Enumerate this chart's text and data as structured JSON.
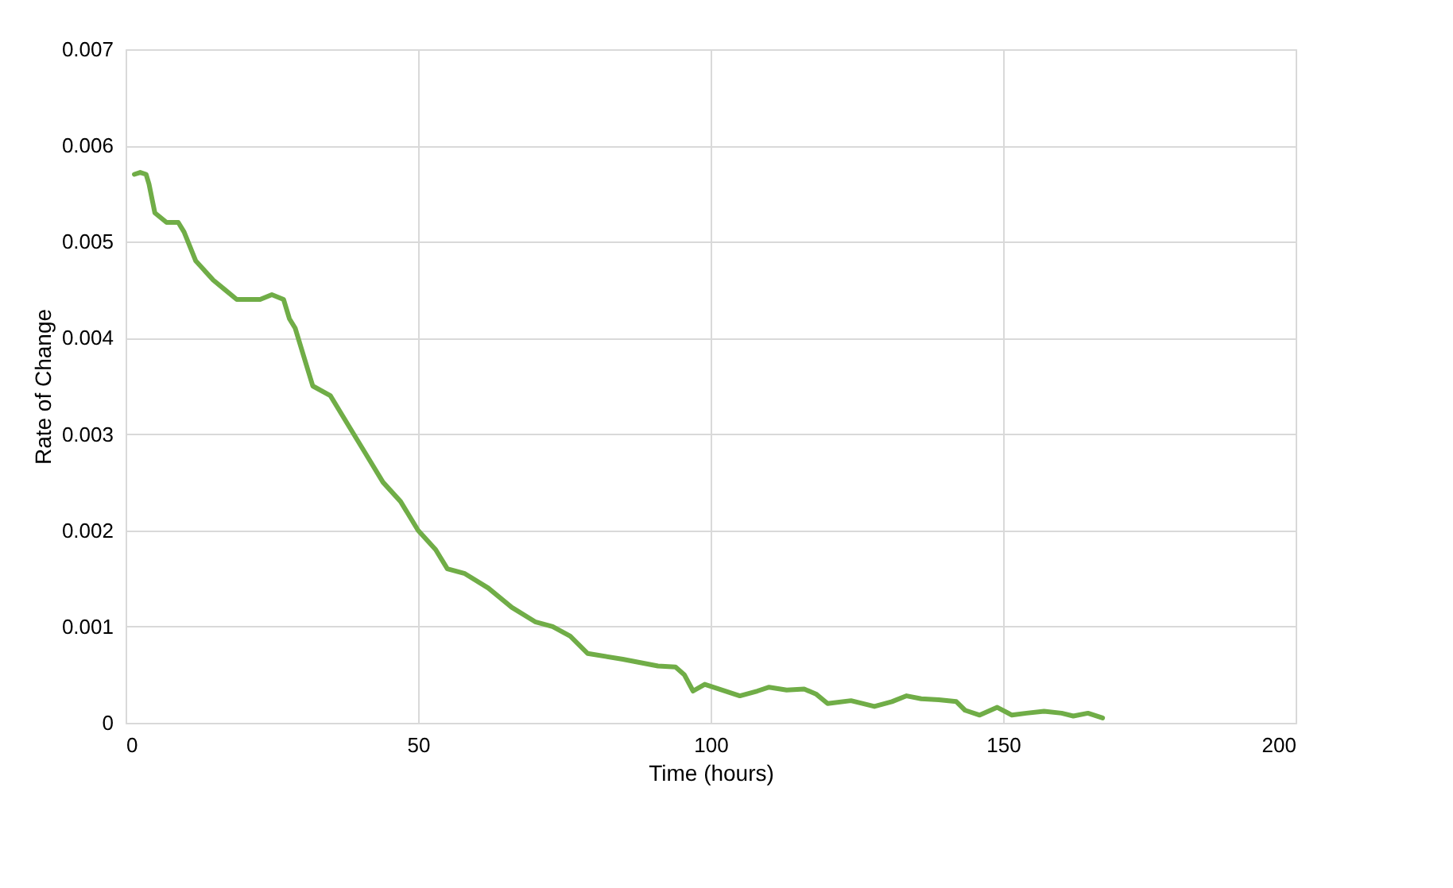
{
  "chart_data": {
    "type": "line",
    "xlabel": "Time (hours)",
    "ylabel": "Rate of Change",
    "xlim": [
      0,
      200
    ],
    "xticks": [
      0,
      50,
      100,
      150,
      200
    ],
    "ylim": [
      0,
      0.007
    ],
    "yticks": [
      0,
      0.001,
      0.002,
      0.003,
      0.004,
      0.005,
      0.006,
      0.007
    ],
    "grid": true,
    "legend": false,
    "marker": "none",
    "line_style": "solid",
    "series": [
      {
        "color": "#70ad47",
        "x": [
          1.5,
          2.5,
          3.5,
          4,
          5,
          7,
          9,
          10,
          12,
          15,
          17,
          19,
          21,
          23,
          25,
          27,
          28,
          29,
          31,
          32,
          35,
          38,
          41,
          44,
          47,
          50,
          53,
          55,
          58,
          62,
          66,
          70,
          73,
          76,
          79,
          85,
          91,
          94,
          95.5,
          97,
          99,
          102,
          105,
          108,
          110,
          113,
          116,
          118,
          120,
          124,
          128,
          131,
          133.5,
          136,
          139,
          142,
          143.5,
          146,
          149,
          151.5,
          154,
          157,
          160,
          162,
          164.5,
          167
        ],
        "values": [
          0.0057,
          0.00572,
          0.0057,
          0.0056,
          0.0053,
          0.0052,
          0.0052,
          0.0051,
          0.0048,
          0.0046,
          0.0045,
          0.0044,
          0.0044,
          0.0044,
          0.00445,
          0.0044,
          0.0042,
          0.0041,
          0.0037,
          0.0035,
          0.0034,
          0.0031,
          0.0028,
          0.0025,
          0.0023,
          0.002,
          0.0018,
          0.0016,
          0.00155,
          0.0014,
          0.0012,
          0.00105,
          0.001,
          0.0009,
          0.00072,
          0.00066,
          0.00059,
          0.00058,
          0.0005,
          0.00033,
          0.0004,
          0.00034,
          0.00028,
          0.00033,
          0.00037,
          0.00034,
          0.00035,
          0.0003,
          0.0002,
          0.00023,
          0.00017,
          0.00022,
          0.00028,
          0.00025,
          0.00024,
          0.00022,
          0.00013,
          8e-05,
          0.00016,
          8e-05,
          0.0001,
          0.00012,
          0.0001,
          7e-05,
          0.0001,
          5e-05
        ]
      }
    ]
  }
}
